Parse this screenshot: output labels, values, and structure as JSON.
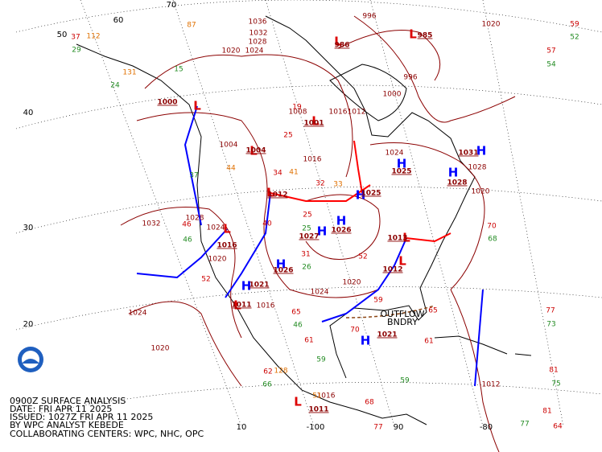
{
  "header": {
    "lines": [
      "0900Z SURFACE ANALYSIS",
      "DATE: FRI APR 11 2025",
      "ISSUED: 1027Z FRI APR 11 2025",
      "BY WPC ANALYST KEBEDE",
      "COLLABORATING CENTERS: WPC, NHC, OPC"
    ]
  },
  "latitudes": [
    "60",
    "50",
    "40",
    "30",
    "20"
  ],
  "longitudes": [
    "70",
    "10",
    "-100",
    "90",
    "-80"
  ],
  "highs": [
    {
      "symbol": "H",
      "pressure": "1025"
    },
    {
      "symbol": "H",
      "pressure": "1028"
    },
    {
      "symbol": "H",
      "pressure": "1031"
    },
    {
      "symbol": "H",
      "pressure": "1026"
    },
    {
      "symbol": "H",
      "pressure": "1027"
    },
    {
      "symbol": "H",
      "pressure": "1025"
    },
    {
      "symbol": "H",
      "pressure": "1026"
    },
    {
      "symbol": "H",
      "pressure": "1021"
    },
    {
      "symbol": "H",
      "pressure": "1021"
    }
  ],
  "lows": [
    {
      "symbol": "L",
      "pressure": "1000"
    },
    {
      "symbol": "L",
      "pressure": "1004"
    },
    {
      "symbol": "L",
      "pressure": "1012"
    },
    {
      "symbol": "L",
      "pressure": "1016"
    },
    {
      "symbol": "L",
      "pressure": "1013"
    },
    {
      "symbol": "L",
      "pressure": "1012"
    },
    {
      "symbol": "L",
      "pressure": "1011"
    },
    {
      "symbol": "L",
      "pressure": "1011"
    },
    {
      "symbol": "L",
      "pressure": "985"
    },
    {
      "symbol": "L",
      "pressure": "986"
    },
    {
      "symbol": "L",
      "pressure": "1001"
    }
  ],
  "isobar_labels": [
    "1036",
    "1032",
    "1028",
    "1024",
    "1020",
    "996",
    "1020",
    "1016",
    "1012",
    "1008",
    "1004",
    "1016",
    "1024",
    "1020",
    "1028",
    "1032",
    "1028",
    "1024",
    "1020",
    "1024",
    "1020",
    "1016",
    "1024",
    "1020",
    "1016",
    "1012",
    "996",
    "1000"
  ],
  "boundary_label": {
    "line1": "OUTFLOW",
    "line2": "BNDRY"
  },
  "temperatures": [
    "37",
    "57",
    "59",
    "77",
    "81",
    "81",
    "64",
    "70",
    "65",
    "61",
    "52",
    "59",
    "70",
    "68",
    "77",
    "61",
    "65",
    "46",
    "52",
    "62",
    "25",
    "34",
    "40",
    "19",
    "25",
    "32",
    "31"
  ],
  "dewpoints": [
    "29",
    "52",
    "54",
    "24",
    "15",
    "37",
    "46",
    "68",
    "73",
    "75",
    "77",
    "59",
    "59",
    "46",
    "66",
    "25",
    "26"
  ],
  "other_obs": [
    "112",
    "131",
    "87",
    "44",
    "128",
    "51",
    "33",
    "41"
  ]
}
